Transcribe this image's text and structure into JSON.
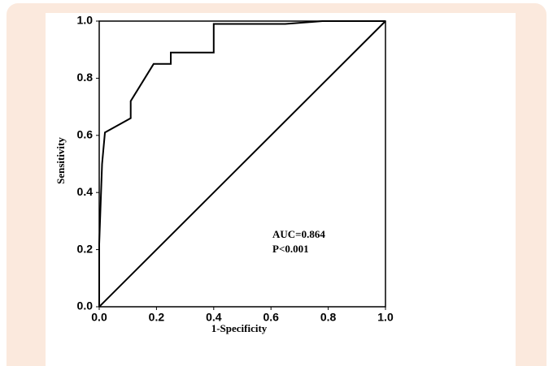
{
  "chart_data": {
    "type": "line",
    "xlabel": "1-Specificity",
    "ylabel": "Sensitivity",
    "annotations": [
      "AUC=0.864",
      "P<0.001"
    ],
    "xlim": [
      0,
      1
    ],
    "ylim": [
      0,
      1
    ],
    "xticks": [
      {
        "value": 0,
        "label": "0.0"
      },
      0.2,
      0.4,
      0.6,
      0.8,
      {
        "value": 1,
        "label": "1.0"
      }
    ],
    "yticks": [
      {
        "value": 0,
        "label": "0.0"
      },
      0.2,
      0.4,
      0.6,
      0.8,
      {
        "value": 1,
        "label": "1.0"
      }
    ],
    "series": [
      {
        "color": "#000000",
        "x": [
          0,
          0,
          0.01,
          0.02,
          0.11,
          0.11,
          0.19,
          0.25,
          0.25,
          0.4,
          0.4,
          0.65,
          0.78,
          1.0
        ],
        "values": [
          0,
          0.22,
          0.5,
          0.61,
          0.66,
          0.72,
          0.85,
          0.85,
          0.89,
          0.89,
          0.99,
          0.99,
          1.0,
          1.0
        ]
      },
      {
        "color": "#000000",
        "x": [
          0,
          1
        ],
        "values": [
          0,
          1
        ]
      }
    ]
  }
}
